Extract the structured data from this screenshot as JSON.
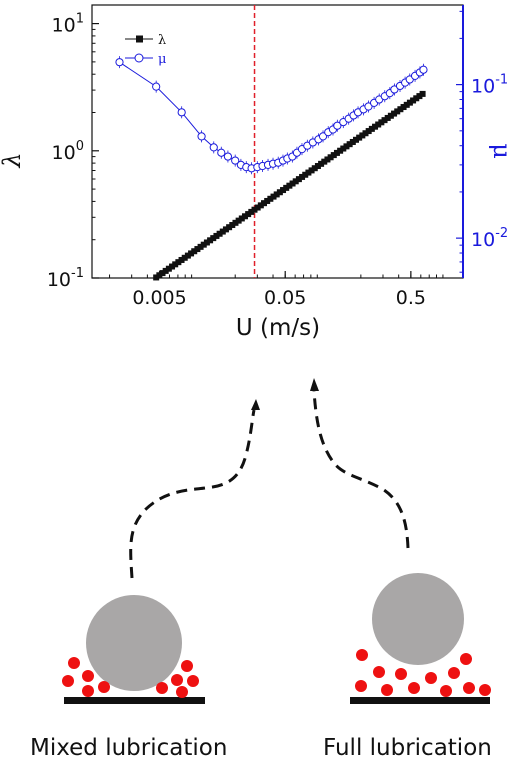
{
  "chart_data": {
    "type": "scatter",
    "x_scale": "log",
    "x_ticks": [
      "0.005",
      "0.05",
      "0.5"
    ],
    "x_tick_values": [
      0.005,
      0.05,
      0.5
    ],
    "xlabel": "U (m/s)",
    "xlim": [
      0.00145,
      1.3
    ],
    "left_axis": {
      "label": "λ",
      "scale": "log",
      "ylim": [
        0.1,
        14
      ],
      "ticks": [
        {
          "base": "10",
          "exp": "-1",
          "value": 0.1
        },
        {
          "base": "10",
          "exp": "0",
          "value": 1
        },
        {
          "base": "10",
          "exp": "1",
          "value": 10
        }
      ]
    },
    "right_axis": {
      "label": "μ",
      "scale": "log",
      "ylim": [
        0.0055,
        0.33
      ],
      "color": "#1a1adc",
      "ticks": [
        {
          "base": "10",
          "exp": "-2",
          "value": 0.01
        },
        {
          "base": "10",
          "exp": "-1",
          "value": 0.1
        }
      ]
    },
    "grid": false,
    "legend_position": "top-left",
    "reference_line": {
      "x": 0.0285,
      "color": "#e0202a",
      "style": "dashed"
    },
    "series": [
      {
        "name": "λ",
        "axis": "left",
        "marker": "filled-square",
        "color": "#111111",
        "x_start": 0.0047,
        "x_end": 0.62,
        "count": 85,
        "y_at_start": 0.101,
        "y_at_end": 2.8
      },
      {
        "name": "μ",
        "axis": "right",
        "marker": "open-circle",
        "color": "#1a1adc",
        "points": [
          [
            0.0024,
            0.14
          ],
          [
            0.0047,
            0.097
          ],
          [
            0.0075,
            0.066
          ],
          [
            0.0108,
            0.046
          ],
          [
            0.0135,
            0.039
          ],
          [
            0.0155,
            0.036
          ],
          [
            0.0175,
            0.034
          ],
          [
            0.02,
            0.032
          ],
          [
            0.0222,
            0.03
          ],
          [
            0.0245,
            0.029
          ],
          [
            0.027,
            0.0285
          ],
          [
            0.03,
            0.029
          ],
          [
            0.033,
            0.0295
          ],
          [
            0.0365,
            0.03
          ],
          [
            0.04,
            0.0305
          ],
          [
            0.044,
            0.031
          ],
          [
            0.048,
            0.032
          ],
          [
            0.052,
            0.033
          ],
          [
            0.057,
            0.034
          ],
          [
            0.062,
            0.036
          ],
          [
            0.068,
            0.038
          ],
          [
            0.075,
            0.04
          ],
          [
            0.083,
            0.042
          ],
          [
            0.092,
            0.044
          ],
          [
            0.1,
            0.046
          ],
          [
            0.11,
            0.049
          ],
          [
            0.12,
            0.051
          ],
          [
            0.13,
            0.054
          ],
          [
            0.145,
            0.057
          ],
          [
            0.16,
            0.06
          ],
          [
            0.175,
            0.063
          ],
          [
            0.19,
            0.066
          ],
          [
            0.21,
            0.069
          ],
          [
            0.23,
            0.072
          ],
          [
            0.255,
            0.076
          ],
          [
            0.28,
            0.08
          ],
          [
            0.31,
            0.084
          ],
          [
            0.34,
            0.088
          ],
          [
            0.37,
            0.093
          ],
          [
            0.41,
            0.098
          ],
          [
            0.45,
            0.103
          ],
          [
            0.49,
            0.108
          ],
          [
            0.54,
            0.114
          ],
          [
            0.59,
            0.12
          ],
          [
            0.63,
            0.125
          ]
        ]
      }
    ]
  },
  "diagram": {
    "left_caption": "Mixed lubrication",
    "right_caption": "Full lubrication",
    "sphere_color": "#a9a7a7",
    "particle_color": "#ee1111",
    "surface_color": "#111111"
  }
}
